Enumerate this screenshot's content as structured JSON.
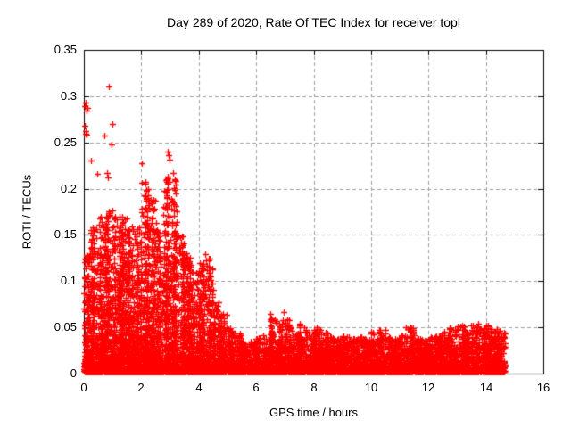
{
  "page": {
    "background": "#ffffff"
  },
  "chart_data": {
    "type": "scatter",
    "title": "Day 289 of 2020, Rate Of TEC Index for receiver topl",
    "receiver": "topl",
    "day_of_year": "289",
    "year": "2020",
    "xlabel": "GPS time / hours",
    "ylabel": "ROTI / TECUs",
    "xlim": [
      0,
      16
    ],
    "ylim": [
      0,
      0.35
    ],
    "xticks": [
      0,
      2,
      4,
      6,
      8,
      10,
      12,
      14,
      16
    ],
    "xtick_labels": [
      "0",
      "2",
      "4",
      "6",
      "8",
      "10",
      "12",
      "14",
      "16"
    ],
    "yticks": [
      0,
      0.05,
      0.1,
      0.15,
      0.2,
      0.25,
      0.3,
      0.35
    ],
    "ytick_labels": [
      "0",
      "0.05",
      "0.1",
      "0.15",
      "0.2",
      "0.25",
      "0.3",
      "0.35"
    ],
    "grid": true,
    "legend": "none",
    "marker": "plus",
    "marker_color": "#ff0000",
    "axis_color": "#000000",
    "grid_color": "#9e9e9e",
    "data_start_hour": 0.0,
    "data_end_hour": 14.65,
    "cloud_bins": {
      "comment": "dense scatter cloud summarized per 0.25 h bin: [bin_start_hour, cloud_top_ROTI, point_count]",
      "bin_width": 0.25,
      "rows": [
        [
          0.0,
          0.13,
          240
        ],
        [
          0.25,
          0.16,
          300
        ],
        [
          0.5,
          0.17,
          300
        ],
        [
          0.75,
          0.18,
          310
        ],
        [
          1.0,
          0.17,
          300
        ],
        [
          1.25,
          0.17,
          300
        ],
        [
          1.5,
          0.16,
          300
        ],
        [
          1.75,
          0.16,
          300
        ],
        [
          2.0,
          0.21,
          320
        ],
        [
          2.25,
          0.19,
          300
        ],
        [
          2.5,
          0.17,
          280
        ],
        [
          2.75,
          0.22,
          310
        ],
        [
          3.0,
          0.22,
          320
        ],
        [
          3.25,
          0.15,
          260
        ],
        [
          3.5,
          0.13,
          240
        ],
        [
          3.75,
          0.11,
          230
        ],
        [
          4.0,
          0.12,
          230
        ],
        [
          4.25,
          0.125,
          220
        ],
        [
          4.5,
          0.08,
          200
        ],
        [
          4.75,
          0.065,
          190
        ],
        [
          5.0,
          0.05,
          180
        ],
        [
          5.25,
          0.045,
          175
        ],
        [
          5.5,
          0.035,
          170
        ],
        [
          5.75,
          0.035,
          170
        ],
        [
          6.0,
          0.04,
          170
        ],
        [
          6.25,
          0.042,
          170
        ],
        [
          6.5,
          0.062,
          175
        ],
        [
          6.75,
          0.055,
          170
        ],
        [
          7.0,
          0.06,
          175
        ],
        [
          7.25,
          0.045,
          170
        ],
        [
          7.5,
          0.055,
          170
        ],
        [
          7.75,
          0.045,
          170
        ],
        [
          8.0,
          0.05,
          170
        ],
        [
          8.25,
          0.045,
          170
        ],
        [
          8.5,
          0.04,
          170
        ],
        [
          8.75,
          0.038,
          170
        ],
        [
          9.0,
          0.042,
          170
        ],
        [
          9.25,
          0.038,
          170
        ],
        [
          9.5,
          0.04,
          170
        ],
        [
          9.75,
          0.038,
          170
        ],
        [
          10.0,
          0.045,
          170
        ],
        [
          10.25,
          0.048,
          170
        ],
        [
          10.5,
          0.04,
          170
        ],
        [
          10.75,
          0.038,
          170
        ],
        [
          11.0,
          0.042,
          170
        ],
        [
          11.25,
          0.05,
          170
        ],
        [
          11.5,
          0.04,
          170
        ],
        [
          11.75,
          0.038,
          170
        ],
        [
          12.0,
          0.04,
          170
        ],
        [
          12.25,
          0.042,
          170
        ],
        [
          12.5,
          0.045,
          170
        ],
        [
          12.75,
          0.05,
          172
        ],
        [
          13.0,
          0.052,
          175
        ],
        [
          13.25,
          0.048,
          175
        ],
        [
          13.5,
          0.054,
          180
        ],
        [
          13.75,
          0.05,
          180
        ],
        [
          14.0,
          0.054,
          185
        ],
        [
          14.25,
          0.05,
          185
        ],
        [
          14.5,
          0.045,
          80
        ]
      ]
    },
    "outliers": [
      [
        0.03,
        0.289
      ],
      [
        0.06,
        0.293
      ],
      [
        0.1,
        0.284
      ],
      [
        0.13,
        0.287
      ],
      [
        0.04,
        0.268
      ],
      [
        0.07,
        0.262
      ],
      [
        0.1,
        0.258
      ],
      [
        0.05,
        0.259
      ],
      [
        0.87,
        0.31
      ],
      [
        1.0,
        0.27
      ],
      [
        0.71,
        0.257
      ],
      [
        0.96,
        0.248
      ],
      [
        0.25,
        0.23
      ],
      [
        0.47,
        0.216
      ],
      [
        0.81,
        0.217
      ],
      [
        0.84,
        0.212
      ],
      [
        2.92,
        0.24
      ],
      [
        2.95,
        0.236
      ],
      [
        2.98,
        0.231
      ],
      [
        2.02,
        0.228
      ],
      [
        4.22,
        0.129
      ],
      [
        4.25,
        0.122
      ],
      [
        6.49,
        0.065
      ],
      [
        6.52,
        0.06
      ],
      [
        6.96,
        0.067
      ],
      [
        6.93,
        0.058
      ],
      [
        7.52,
        0.054
      ],
      [
        8.1,
        0.05
      ],
      [
        10.28,
        0.047
      ],
      [
        11.22,
        0.05
      ],
      [
        12.85,
        0.047
      ],
      [
        13.02,
        0.048
      ],
      [
        13.48,
        0.052
      ],
      [
        13.64,
        0.05
      ],
      [
        14.07,
        0.051
      ]
    ],
    "generator": {
      "seed": 12892020,
      "shape": 3,
      "y_base": 0.002,
      "x_max": 14.65,
      "cluster_frac": 0.45,
      "cluster_sd": 0.02
    }
  }
}
